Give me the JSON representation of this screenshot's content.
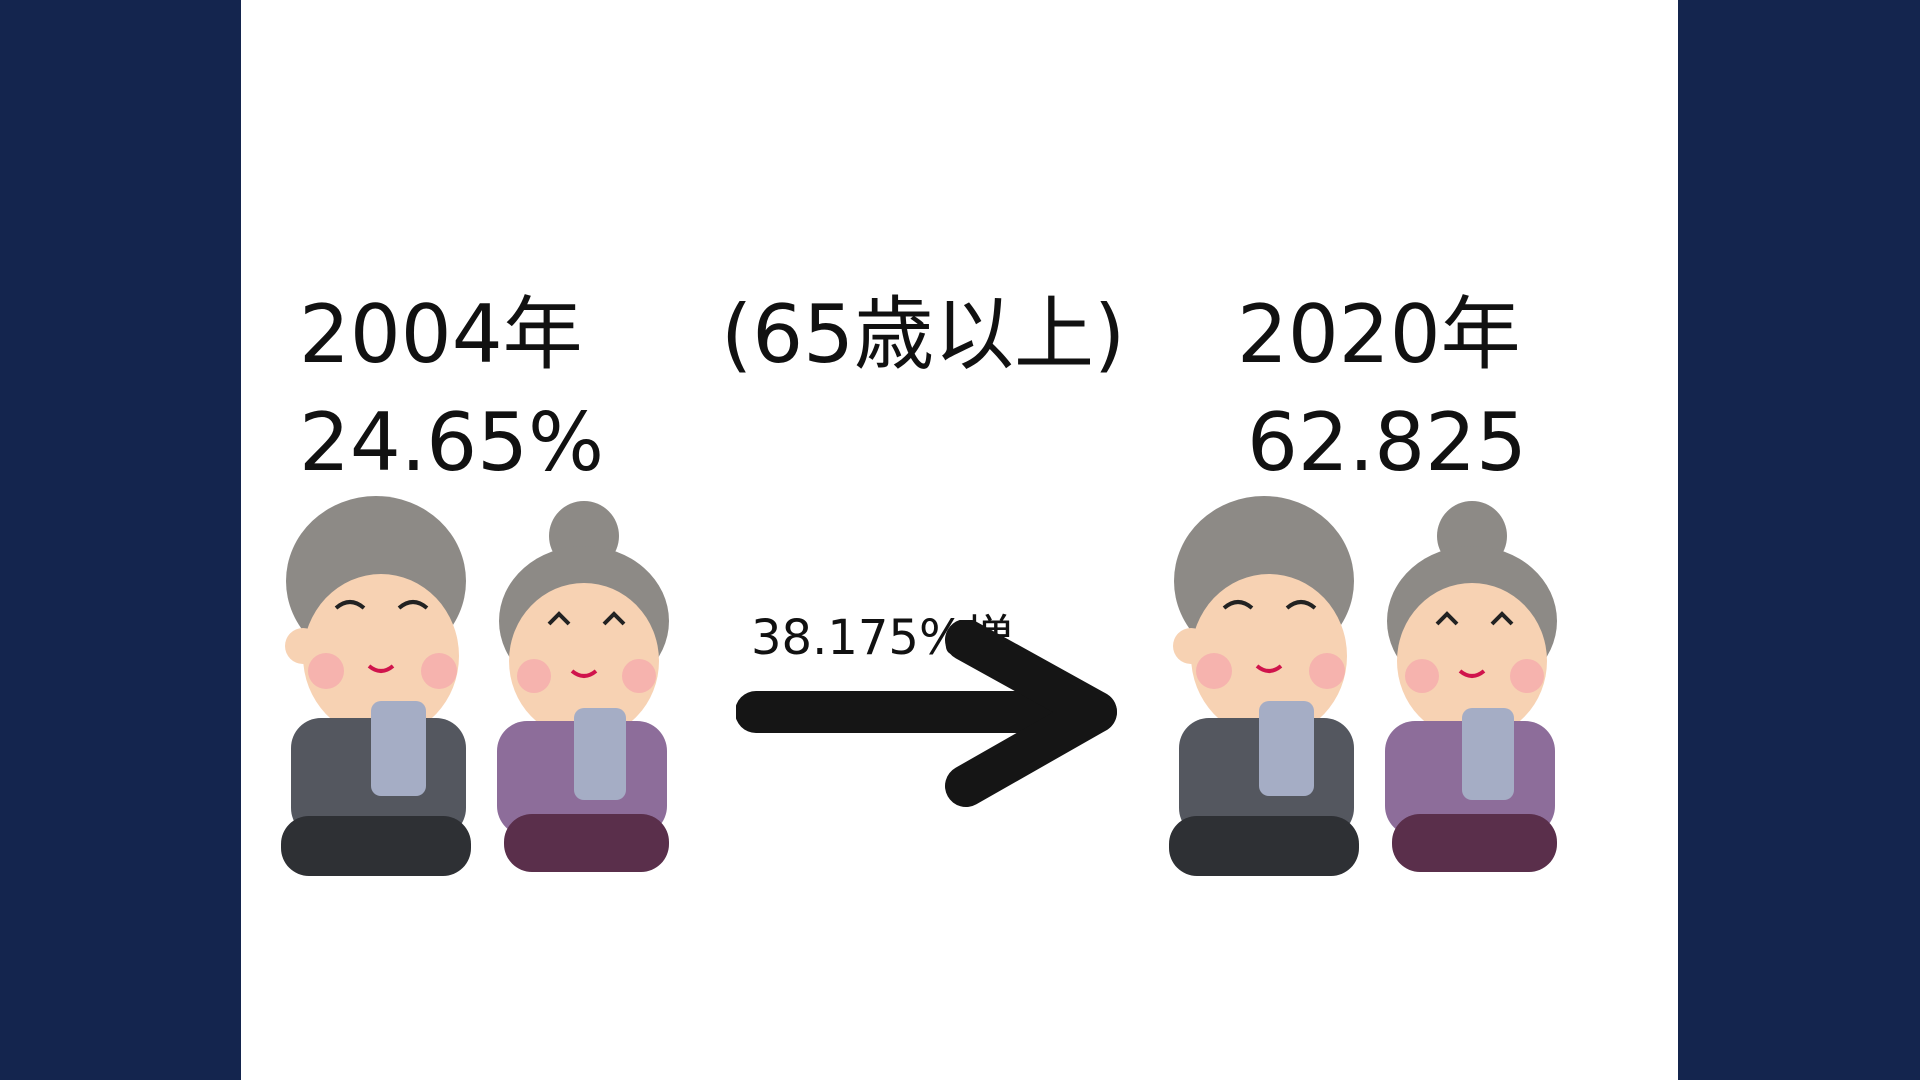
{
  "slide": {
    "left_year": "2004年",
    "left_value": "24.65%",
    "center_label": "(65歳以上)",
    "right_year": "2020年",
    "right_value": "62.825",
    "increase_label": "38.175%増"
  },
  "colors": {
    "page_background": "#14254e",
    "slide_background": "#ffffff",
    "text": "#111111",
    "arrow": "#151515"
  },
  "icons": [
    "grandpa-with-smartphone",
    "grandma-with-smartphone",
    "right-arrow"
  ]
}
